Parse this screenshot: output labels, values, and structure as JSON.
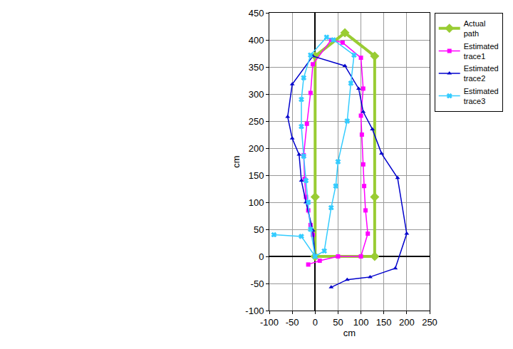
{
  "chart_data": {
    "type": "line",
    "x_label": "cm",
    "y_label": "cm",
    "xlim": [
      -100,
      250
    ],
    "xticks": [
      -100,
      -50,
      0,
      50,
      100,
      150,
      200,
      250
    ],
    "ylim": [
      -100,
      450
    ],
    "yticks": [
      -100,
      -50,
      0,
      50,
      100,
      150,
      200,
      250,
      300,
      350,
      400,
      450
    ],
    "grid": true,
    "legend": "right",
    "series": [
      {
        "name": "Actual path",
        "color": "#99cc33",
        "marker": "diamond",
        "line_style": "thick",
        "x": [
          0,
          0,
          0,
          65,
          130,
          130,
          130,
          0
        ],
        "values": [
          0,
          110,
          370,
          413,
          370,
          110,
          0,
          0
        ]
      },
      {
        "name": "Estimated trace1",
        "color": "#ff00ff",
        "marker": "square",
        "line_style": "solid",
        "x": [
          -15,
          10,
          50,
          100,
          115,
          110,
          107,
          105,
          102,
          100,
          105,
          100,
          60,
          35,
          -5,
          -10,
          -18,
          -25,
          -23,
          -20,
          -15,
          -10,
          -5
        ],
        "values": [
          -15,
          -8,
          0,
          0,
          42,
          85,
          130,
          170,
          225,
          260,
          310,
          367,
          395,
          400,
          355,
          302,
          245,
          187,
          143,
          110,
          85,
          58,
          40
        ]
      },
      {
        "name": "Estimated trace2",
        "color": "#0000cc",
        "marker": "triangle-up",
        "line_style": "solid",
        "x": [
          35,
          70,
          120,
          175,
          200,
          180,
          145,
          125,
          105,
          95,
          65,
          -5,
          -50,
          -60,
          -50,
          -35,
          -30,
          -20,
          -5,
          0
        ],
        "values": [
          -57,
          -43,
          -38,
          -22,
          42,
          145,
          190,
          235,
          267,
          310,
          352,
          370,
          318,
          258,
          218,
          188,
          140,
          100,
          48,
          0
        ]
      },
      {
        "name": "Estimated trace3",
        "color": "#33ccff",
        "marker": "x",
        "line_style": "solid",
        "x": [
          -90,
          -30,
          0,
          20,
          35,
          45,
          50,
          70,
          78,
          85,
          40,
          25,
          -10,
          -25,
          -30,
          -30,
          -25,
          -20,
          -15,
          -10,
          0
        ],
        "values": [
          40,
          37,
          0,
          10,
          90,
          130,
          175,
          250,
          320,
          372,
          400,
          405,
          372,
          330,
          290,
          240,
          185,
          140,
          100,
          50,
          0
        ]
      }
    ]
  }
}
